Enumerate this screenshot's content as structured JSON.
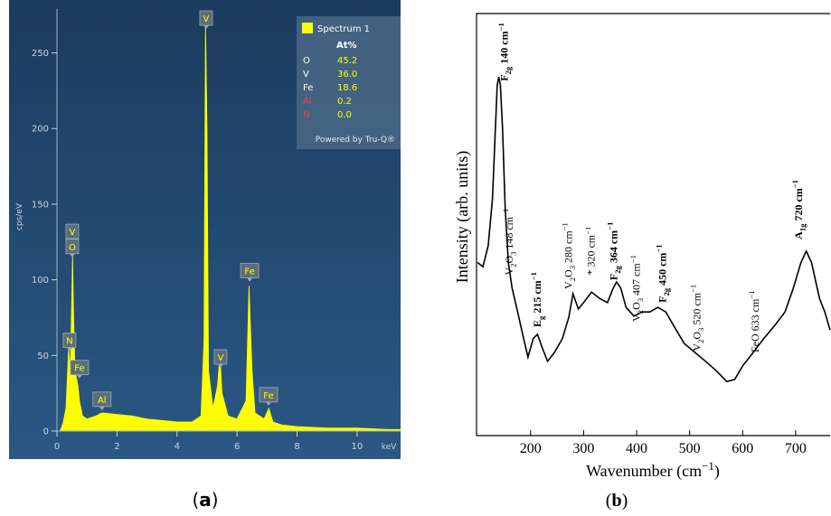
{
  "chart_data": [
    {
      "type": "area",
      "color": "#ffff00",
      "xlabel": "keV",
      "ylabel": "cps/eV",
      "x": [
        0.1,
        0.2,
        0.3,
        0.39,
        0.45,
        0.52,
        0.55,
        0.6,
        0.7,
        0.75,
        0.85,
        1.0,
        1.3,
        1.5,
        2,
        2.5,
        3,
        3.5,
        4,
        4.5,
        4.8,
        4.9,
        4.95,
        5.0,
        5.05,
        5.2,
        5.35,
        5.43,
        5.5,
        5.7,
        6.0,
        6.3,
        6.4,
        6.5,
        6.6,
        6.9,
        7.06,
        7.2,
        7.5,
        8,
        9,
        10,
        11,
        11.45
      ],
      "values": [
        0,
        5,
        15,
        55,
        40,
        118,
        80,
        40,
        30,
        20,
        10,
        8,
        10,
        12,
        11,
        10,
        8,
        7,
        6,
        6,
        10,
        60,
        270,
        200,
        40,
        15,
        30,
        50,
        25,
        10,
        8,
        20,
        96,
        40,
        12,
        8,
        15,
        6,
        4,
        3,
        2,
        2,
        1,
        1
      ],
      "xlim": [
        0,
        11.45
      ],
      "ylim": [
        0,
        279
      ],
      "xticks": [
        0,
        2,
        4,
        6,
        8,
        10
      ],
      "yticks": [
        0,
        50,
        100,
        150,
        200,
        250
      ],
      "annotations": [
        {
          "text": "V",
          "x": 0.51,
          "y": 132
        },
        {
          "text": "O",
          "x": 0.51,
          "y": 122
        },
        {
          "text": "N",
          "x": 0.42,
          "y": 60
        },
        {
          "text": "Fe",
          "x": 0.75,
          "y": 42
        },
        {
          "text": "Al",
          "x": 1.5,
          "y": 21
        },
        {
          "text": "V",
          "x": 4.97,
          "y": 273
        },
        {
          "text": "V",
          "x": 5.45,
          "y": 49
        },
        {
          "text": "Fe",
          "x": 6.42,
          "y": 106
        },
        {
          "text": "Fe",
          "x": 7.05,
          "y": 24
        }
      ],
      "legend": {
        "title": "Spectrum 1",
        "header": "At%",
        "rows": [
          {
            "element": "O",
            "at": "45.2",
            "color": "#ffffff"
          },
          {
            "element": "V",
            "at": "36.0",
            "color": "#ffffff"
          },
          {
            "element": "Fe",
            "at": "18.6",
            "color": "#ffffff"
          },
          {
            "element": "Al",
            "at": "0.2",
            "color": "#ff3b3b"
          },
          {
            "element": "N",
            "at": "0.0",
            "color": "#ff3b3b"
          }
        ],
        "footer": "Powered by Tru-Q®"
      },
      "panel_label": [
        {
          "t": "("
        },
        {
          "t": "a",
          "style": "bold"
        },
        {
          "t": ")"
        }
      ]
    },
    {
      "type": "line",
      "color": "#000000",
      "xlabel": [
        {
          "t": "Wavenumber (cm"
        },
        {
          "t": "−1",
          "style": "sup"
        },
        {
          "t": ")"
        }
      ],
      "ylabel": "Intensity (arb. units)",
      "x": [
        100,
        110,
        120,
        128,
        133,
        137,
        140,
        143,
        147,
        152,
        158,
        165,
        175,
        185,
        195,
        205,
        213,
        222,
        232,
        245,
        260,
        272,
        280,
        290,
        300,
        315,
        330,
        345,
        355,
        362,
        370,
        380,
        395,
        410,
        425,
        440,
        455,
        470,
        490,
        510,
        530,
        550,
        570,
        585,
        600,
        620,
        640,
        660,
        680,
        695,
        710,
        720,
        730,
        745,
        755,
        765
      ],
      "values": [
        41,
        40,
        45,
        56,
        71,
        83,
        85,
        83,
        73,
        54,
        41,
        35,
        29.6,
        24,
        18.6,
        23,
        24,
        20.8,
        17.6,
        19.7,
        23,
        28,
        33.6,
        30,
        31.5,
        34,
        32.5,
        31.5,
        34.7,
        36.4,
        35,
        30.4,
        28.3,
        29.3,
        29.3,
        30.4,
        29.3,
        26,
        21.8,
        19.7,
        17.6,
        15.4,
        12.8,
        13.3,
        16.5,
        19.7,
        23,
        26,
        29.3,
        34.7,
        41,
        43.7,
        41,
        32.5,
        29.3,
        25
      ],
      "xlim": [
        98,
        765
      ],
      "ylim": [
        0,
        100
      ],
      "xticks": [
        200,
        300,
        400,
        500,
        600,
        700
      ],
      "annotations": [
        {
          "x": 157,
          "y": 84,
          "bold": true,
          "segments": [
            {
              "t": "F"
            },
            {
              "t": "2g",
              "style": "sub"
            },
            {
              "t": " 140 cm"
            },
            {
              "t": "−1",
              "style": "sup"
            }
          ]
        },
        {
          "x": 166,
          "y": 38,
          "segments": [
            {
              "t": "V"
            },
            {
              "t": "2",
              "style": "sub"
            },
            {
              "t": "O"
            },
            {
              "t": "3",
              "style": "sub"
            },
            {
              "t": " 148 cm"
            },
            {
              "t": "−1",
              "style": "sup"
            }
          ]
        },
        {
          "x": 219,
          "y": 25.7,
          "bold": true,
          "segments": [
            {
              "t": "E"
            },
            {
              "t": "g",
              "style": "sub"
            },
            {
              "t": " 215 cm"
            },
            {
              "t": "−1",
              "style": "sup"
            }
          ]
        },
        {
          "x": 278,
          "y": 34.7,
          "segments": [
            {
              "t": "V"
            },
            {
              "t": "2",
              "style": "sub"
            },
            {
              "t": "O"
            },
            {
              "t": "3",
              "style": "sub"
            },
            {
              "t": " 280 cm"
            },
            {
              "t": "−1",
              "style": "sup"
            }
          ]
        },
        {
          "x": 321,
          "y": 38,
          "segments": [
            {
              "t": "* 320 cm"
            },
            {
              "t": "−1",
              "style": "sup"
            }
          ]
        },
        {
          "x": 363,
          "y": 36.8,
          "bold": true,
          "segments": [
            {
              "t": "F"
            },
            {
              "t": "2g",
              "style": "sub"
            },
            {
              "t": " 364 cm"
            },
            {
              "t": "−1",
              "style": "sup"
            }
          ]
        },
        {
          "x": 406,
          "y": 27,
          "segments": [
            {
              "t": "V"
            },
            {
              "t": "2",
              "style": "sub"
            },
            {
              "t": "O"
            },
            {
              "t": "3",
              "style": "sub"
            },
            {
              "t": " 407 cm"
            },
            {
              "t": "−1",
              "style": "sup"
            }
          ]
        },
        {
          "x": 455,
          "y": 31.5,
          "bold": true,
          "segments": [
            {
              "t": "F"
            },
            {
              "t": "2g",
              "style": "sub"
            },
            {
              "t": " 450 cm"
            },
            {
              "t": "−1",
              "style": "sup"
            }
          ]
        },
        {
          "x": 520,
          "y": 20,
          "segments": [
            {
              "t": "V"
            },
            {
              "t": "2",
              "style": "sub"
            },
            {
              "t": "O"
            },
            {
              "t": "3",
              "style": "sub"
            },
            {
              "t": " 520 cm"
            },
            {
              "t": "−1",
              "style": "sup"
            }
          ]
        },
        {
          "x": 630,
          "y": 19.7,
          "segments": [
            {
              "t": "FeO 633 cm"
            },
            {
              "t": "−1",
              "style": "sup"
            }
          ]
        },
        {
          "x": 712,
          "y": 46.5,
          "bold": true,
          "segments": [
            {
              "t": "A"
            },
            {
              "t": "1g",
              "style": "sub"
            },
            {
              "t": " 720 cm"
            },
            {
              "t": "−1",
              "style": "sup"
            }
          ]
        }
      ],
      "panel_label": [
        {
          "t": "("
        },
        {
          "t": "b",
          "style": "bold"
        },
        {
          "t": ")"
        }
      ]
    }
  ]
}
